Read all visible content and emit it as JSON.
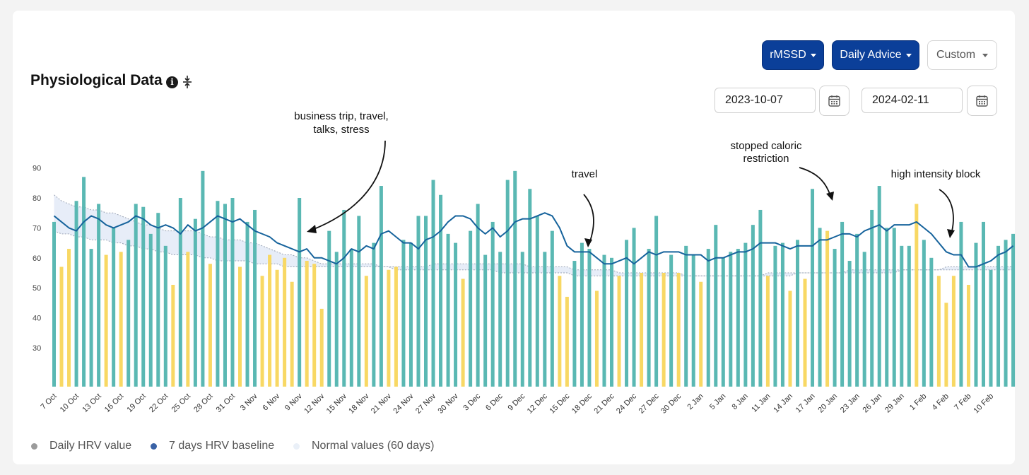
{
  "header": {
    "title": "Physiological Data",
    "info_icon": "info-icon",
    "collapse_icon": "collapse-vertical-icon"
  },
  "controls": {
    "metric_label": "rMSSD",
    "mode_label": "Daily Advice",
    "range_label": "Custom",
    "start_date": "2023-10-07",
    "end_date": "2024-02-11",
    "calendar_icon": "calendar-icon"
  },
  "legend": {
    "daily": "Daily HRV value",
    "baseline": "7 days HRV baseline",
    "normal": "Normal values (60 days)"
  },
  "colors": {
    "accent": "#0b3f99",
    "bar_normal": "#5ab8b3",
    "bar_low": "#f8d864",
    "baseline_line": "#16639c",
    "normal_band": "#e7edf8",
    "legend_daily": "#9b9b9b",
    "legend_baseline": "#3a62a6",
    "legend_normal": "#eaf0f8"
  },
  "chart_data": {
    "type": "bar",
    "x_start": "2023-10-07",
    "x_end": "2024-02-11",
    "y_ticks": [
      30,
      40,
      50,
      60,
      70,
      80,
      90
    ],
    "x_tick_labels": [
      "7 Oct",
      "10 Oct",
      "13 Oct",
      "16 Oct",
      "19 Oct",
      "22 Oct",
      "25 Oct",
      "28 Oct",
      "31 Oct",
      "3 Nov",
      "6 Nov",
      "9 Nov",
      "12 Nov",
      "15 Nov",
      "18 Nov",
      "21 Nov",
      "24 Nov",
      "27 Nov",
      "30 Nov",
      "3 Dec",
      "6 Dec",
      "9 Dec",
      "12 Dec",
      "15 Dec",
      "18 Dec",
      "21 Dec",
      "24 Dec",
      "27 Dec",
      "30 Dec",
      "2 Jan",
      "5 Jan",
      "8 Jan",
      "11 Jan",
      "14 Jan",
      "17 Jan",
      "20 Jan",
      "23 Jan",
      "26 Jan",
      "29 Jan",
      "1 Feb",
      "4 Feb",
      "7 Feb",
      "10 Feb"
    ],
    "series": [
      {
        "name": "Daily HRV value",
        "values": [
          72,
          57,
          63,
          79,
          87,
          63,
          78,
          61,
          70,
          62,
          66,
          78,
          77,
          68,
          75,
          64,
          51,
          80,
          62,
          73,
          89,
          58,
          79,
          78,
          80,
          57,
          72,
          76,
          54,
          61,
          56,
          60,
          52,
          80,
          59,
          58,
          43,
          69,
          62,
          76,
          63,
          74,
          54,
          65,
          84,
          56,
          57,
          66,
          65,
          74,
          74,
          86,
          81,
          68,
          65,
          53,
          69,
          78,
          61,
          72,
          62,
          86,
          89,
          62,
          83,
          74,
          62,
          69,
          54,
          47,
          59,
          65,
          63,
          49,
          61,
          60,
          54,
          66,
          70,
          55,
          63,
          74,
          55,
          61,
          55,
          64,
          61,
          52,
          63,
          71,
          60,
          62,
          63,
          65,
          71,
          76,
          54,
          64,
          65,
          49,
          66,
          53,
          83,
          70,
          69,
          63,
          72,
          59,
          68,
          62,
          76,
          84,
          70,
          70,
          64,
          64,
          78,
          66,
          60,
          54,
          45,
          54,
          72,
          51,
          65,
          72,
          56,
          64,
          66,
          68
        ],
        "low_flags": [
          0,
          1,
          1,
          0,
          0,
          0,
          0,
          1,
          0,
          1,
          0,
          0,
          0,
          0,
          0,
          0,
          1,
          0,
          1,
          0,
          0,
          1,
          0,
          0,
          0,
          1,
          0,
          0,
          1,
          1,
          1,
          1,
          1,
          0,
          1,
          1,
          1,
          0,
          0,
          0,
          0,
          0,
          1,
          0,
          0,
          1,
          1,
          0,
          0,
          0,
          0,
          0,
          0,
          0,
          0,
          1,
          0,
          0,
          0,
          0,
          0,
          0,
          0,
          0,
          0,
          0,
          0,
          0,
          1,
          1,
          0,
          0,
          0,
          1,
          0,
          0,
          1,
          0,
          0,
          1,
          0,
          0,
          1,
          0,
          1,
          0,
          0,
          1,
          0,
          0,
          0,
          0,
          0,
          0,
          0,
          0,
          1,
          0,
          0,
          1,
          0,
          1,
          0,
          0,
          1,
          0,
          0,
          0,
          0,
          0,
          0,
          0,
          0,
          0,
          0,
          0,
          1,
          0,
          0,
          1,
          1,
          1,
          0,
          1,
          0,
          0,
          0,
          0,
          0,
          0
        ]
      },
      {
        "name": "7 days HRV baseline",
        "values": [
          74,
          72,
          70,
          69,
          72,
          74,
          73,
          71,
          70,
          71,
          72,
          74,
          73,
          71,
          70,
          71,
          70,
          68,
          71,
          69,
          70,
          72,
          74,
          73,
          72,
          73,
          71,
          69,
          68,
          67,
          65,
          64,
          63,
          62,
          63,
          60,
          60,
          59,
          58,
          60,
          63,
          62,
          64,
          63,
          68,
          69,
          67,
          65,
          65,
          63,
          66,
          67,
          69,
          72,
          74,
          74,
          73,
          70,
          68,
          70,
          67,
          69,
          72,
          73,
          73,
          74,
          75,
          74,
          70,
          64,
          62,
          62,
          62,
          60,
          58,
          58,
          59,
          60,
          58,
          60,
          62,
          61,
          62,
          62,
          62,
          61,
          61,
          61,
          59,
          60,
          60,
          61,
          62,
          62,
          63,
          65,
          65,
          65,
          64,
          63,
          64,
          64,
          64,
          66,
          66,
          67,
          68,
          68,
          67,
          69,
          70,
          71,
          69,
          71,
          71,
          71,
          72,
          70,
          68,
          65,
          62,
          61,
          61,
          57,
          57,
          58,
          59,
          61,
          62,
          64
        ]
      },
      {
        "name": "Normal values (60 days)",
        "upper": [
          81,
          79,
          78,
          77,
          77,
          76,
          76,
          75,
          75,
          74,
          73,
          72,
          71,
          71,
          70,
          69,
          69,
          69,
          69,
          69,
          68,
          67,
          67,
          66,
          66,
          66,
          65,
          65,
          64,
          63,
          62,
          61,
          61,
          60,
          60,
          59,
          58,
          58,
          58,
          58,
          58,
          58,
          58,
          58,
          57,
          57,
          57,
          57,
          57,
          57,
          57,
          58,
          58,
          58,
          58,
          58,
          58,
          58,
          58,
          58,
          58,
          58,
          58,
          58,
          57,
          57,
          57,
          57,
          57,
          57,
          56,
          56,
          56,
          56,
          56,
          56,
          55,
          55,
          55,
          55,
          55,
          55,
          55,
          55,
          55,
          54,
          54,
          54,
          54,
          54,
          54,
          54,
          54,
          54,
          54,
          54,
          55,
          55,
          55,
          55,
          55,
          55,
          55,
          55,
          55,
          55,
          55,
          56,
          56,
          56,
          56,
          56,
          56,
          56,
          56,
          56,
          56,
          56,
          56,
          56,
          57,
          57,
          57,
          57,
          57,
          57,
          57,
          57,
          57,
          57
        ],
        "lower": [
          69,
          68,
          68,
          67,
          67,
          66,
          66,
          66,
          65,
          65,
          64,
          64,
          63,
          63,
          62,
          62,
          61,
          61,
          61,
          61,
          60,
          60,
          59,
          59,
          59,
          59,
          59,
          58,
          58,
          58,
          58,
          57,
          57,
          57,
          57,
          57,
          57,
          57,
          57,
          57,
          57,
          57,
          57,
          57,
          57,
          57,
          56,
          56,
          56,
          56,
          56,
          56,
          56,
          56,
          56,
          56,
          56,
          56,
          56,
          56,
          55,
          55,
          55,
          55,
          55,
          55,
          55,
          55,
          55,
          55,
          54,
          54,
          54,
          54,
          54,
          54,
          54,
          54,
          54,
          54,
          54,
          54,
          54,
          54,
          54,
          54,
          54,
          54,
          54,
          54,
          54,
          54,
          54,
          54,
          54,
          54,
          54,
          54,
          54,
          54,
          55,
          55,
          55,
          55,
          55,
          55,
          55,
          55,
          55,
          55,
          55,
          55,
          55,
          55,
          56,
          56,
          56,
          56,
          56,
          56,
          56,
          56,
          56,
          56,
          56,
          56,
          56,
          56,
          56,
          56
        ]
      }
    ],
    "annotations": [
      {
        "text_lines": [
          "business trip, travel,",
          "talks, stress"
        ]
      },
      {
        "text_lines": [
          "travel"
        ]
      },
      {
        "text_lines": [
          "stopped caloric",
          "restriction"
        ]
      },
      {
        "text_lines": [
          "high intensity block"
        ]
      }
    ]
  }
}
